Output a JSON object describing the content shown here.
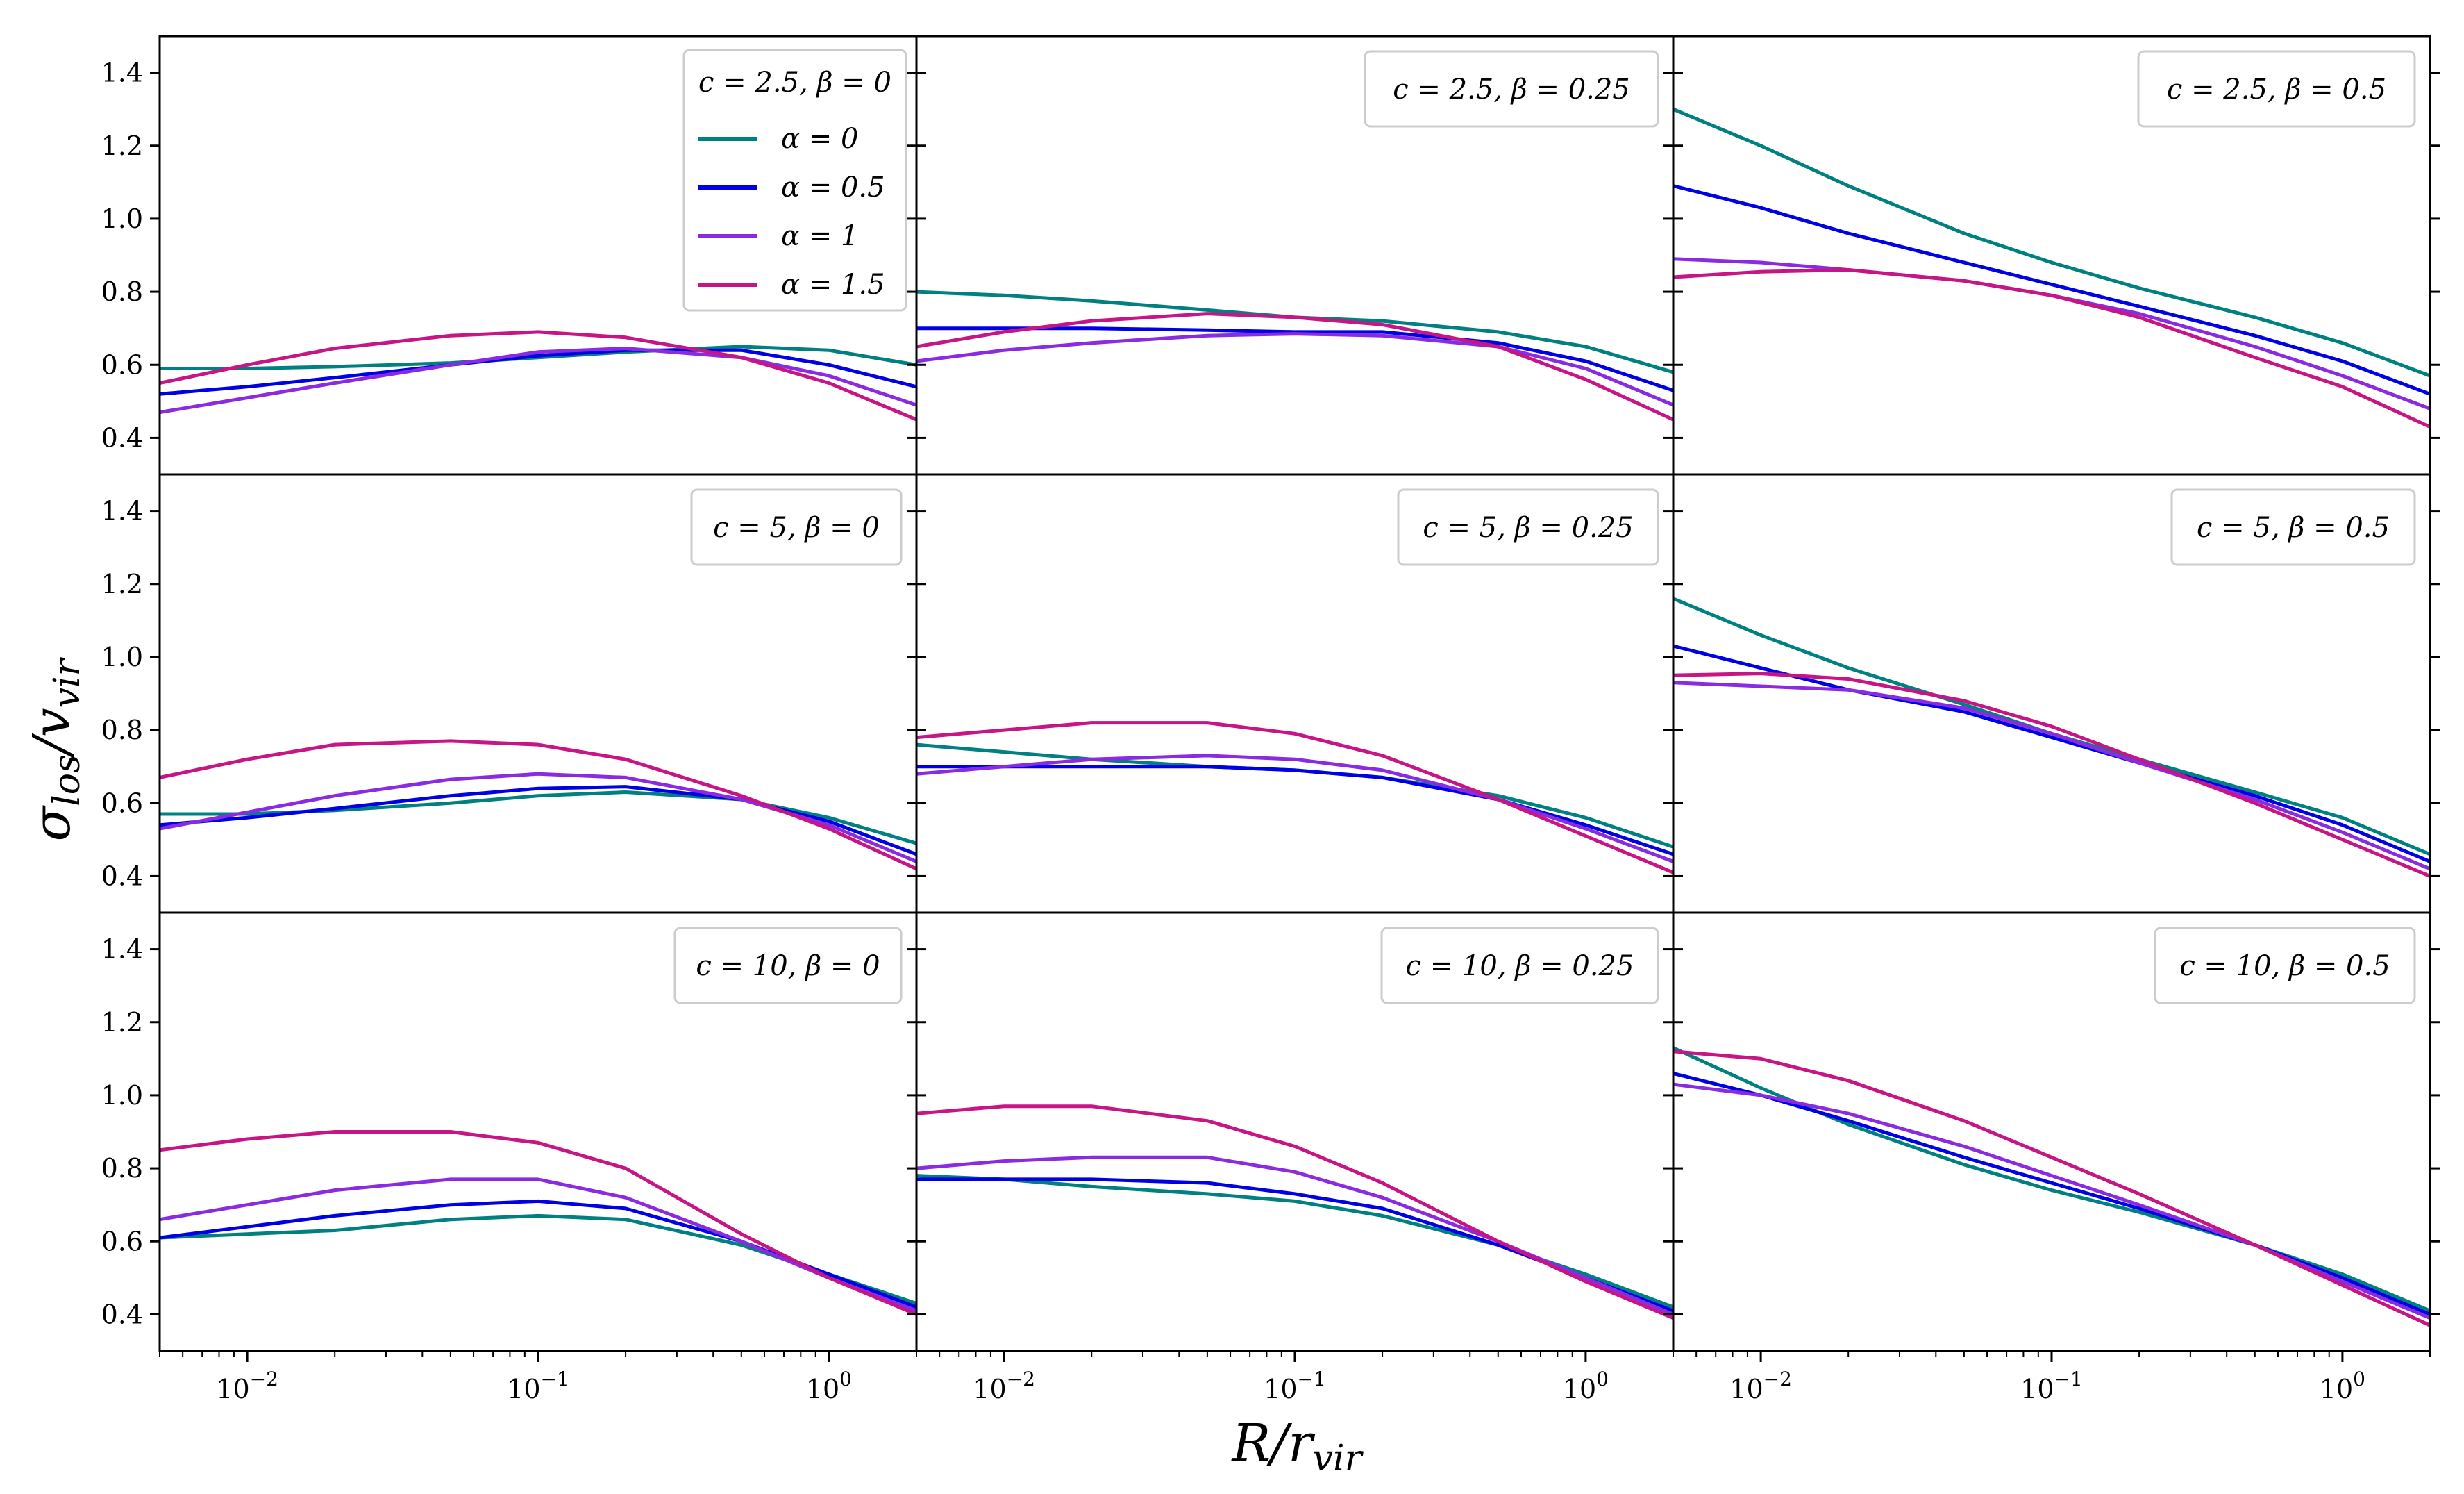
{
  "figure": {
    "xlabel": "R/r",
    "xlabel_sub": "vir",
    "ylabel": "σ",
    "ylabel_sub1": "los",
    "ylabel_mid": "/v",
    "ylabel_sub2": "vir"
  },
  "colors": {
    "alpha_0": "#008080",
    "alpha_0.5": "#0000e6",
    "alpha_1": "#8a2be2",
    "alpha_1.5": "#c71585"
  },
  "legend": {
    "title": "c = 2.5, β = 0",
    "entries": [
      "α = 0",
      "α = 0.5",
      "α = 1",
      "α = 1.5"
    ]
  },
  "chart_data": [
    {
      "type": "line",
      "label": "c = 2.5, β = 0",
      "xscale": "log",
      "xlim": [
        0.005,
        2.0
      ],
      "ylim": [
        0.3,
        1.5
      ],
      "grid": false,
      "legend": "top-right",
      "x": [
        0.005,
        0.01,
        0.02,
        0.05,
        0.1,
        0.2,
        0.5,
        1,
        2
      ],
      "series": [
        {
          "name": "α = 0",
          "values": [
            0.59,
            0.59,
            0.595,
            0.605,
            0.62,
            0.635,
            0.65,
            0.64,
            0.6
          ]
        },
        {
          "name": "α = 0.5",
          "values": [
            0.52,
            0.54,
            0.565,
            0.6,
            0.625,
            0.64,
            0.64,
            0.6,
            0.54
          ]
        },
        {
          "name": "α = 1",
          "values": [
            0.47,
            0.51,
            0.55,
            0.6,
            0.635,
            0.645,
            0.62,
            0.57,
            0.49
          ]
        },
        {
          "name": "α = 1.5",
          "values": [
            0.55,
            0.6,
            0.645,
            0.68,
            0.69,
            0.675,
            0.62,
            0.55,
            0.45
          ]
        }
      ]
    },
    {
      "type": "line",
      "label": "c = 2.5, β = 0.25",
      "xscale": "log",
      "xlim": [
        0.005,
        2.0
      ],
      "ylim": [
        0.3,
        1.5
      ],
      "grid": false,
      "legend": "top-right",
      "x": [
        0.005,
        0.01,
        0.02,
        0.05,
        0.1,
        0.2,
        0.5,
        1,
        2
      ],
      "series": [
        {
          "name": "α = 0",
          "values": [
            0.8,
            0.79,
            0.775,
            0.75,
            0.73,
            0.72,
            0.69,
            0.65,
            0.58
          ]
        },
        {
          "name": "α = 0.5",
          "values": [
            0.7,
            0.7,
            0.7,
            0.695,
            0.69,
            0.69,
            0.66,
            0.61,
            0.53
          ]
        },
        {
          "name": "α = 1",
          "values": [
            0.61,
            0.64,
            0.66,
            0.68,
            0.685,
            0.68,
            0.65,
            0.59,
            0.49
          ]
        },
        {
          "name": "α = 1.5",
          "values": [
            0.65,
            0.69,
            0.72,
            0.74,
            0.73,
            0.71,
            0.65,
            0.56,
            0.45
          ]
        }
      ]
    },
    {
      "type": "line",
      "label": "c = 2.5, β = 0.5",
      "xscale": "log",
      "xlim": [
        0.005,
        2.0
      ],
      "ylim": [
        0.3,
        1.5
      ],
      "grid": false,
      "legend": "top-right",
      "x": [
        0.005,
        0.01,
        0.02,
        0.05,
        0.1,
        0.2,
        0.5,
        1,
        2
      ],
      "series": [
        {
          "name": "α = 0",
          "values": [
            1.3,
            1.2,
            1.09,
            0.96,
            0.88,
            0.81,
            0.73,
            0.66,
            0.57
          ]
        },
        {
          "name": "α = 0.5",
          "values": [
            1.09,
            1.03,
            0.96,
            0.88,
            0.82,
            0.76,
            0.68,
            0.61,
            0.52
          ]
        },
        {
          "name": "α = 1",
          "values": [
            0.89,
            0.88,
            0.86,
            0.83,
            0.79,
            0.74,
            0.65,
            0.57,
            0.48
          ]
        },
        {
          "name": "α = 1.5",
          "values": [
            0.84,
            0.855,
            0.86,
            0.83,
            0.79,
            0.73,
            0.62,
            0.54,
            0.43
          ]
        }
      ]
    },
    {
      "type": "line",
      "label": "c = 5, β = 0",
      "xscale": "log",
      "xlim": [
        0.005,
        2.0
      ],
      "ylim": [
        0.3,
        1.5
      ],
      "grid": false,
      "legend": "top-right",
      "x": [
        0.005,
        0.01,
        0.02,
        0.05,
        0.1,
        0.2,
        0.5,
        1,
        2
      ],
      "series": [
        {
          "name": "α = 0",
          "values": [
            0.57,
            0.57,
            0.58,
            0.6,
            0.62,
            0.63,
            0.61,
            0.56,
            0.49
          ]
        },
        {
          "name": "α = 0.5",
          "values": [
            0.54,
            0.56,
            0.585,
            0.62,
            0.64,
            0.645,
            0.61,
            0.55,
            0.46
          ]
        },
        {
          "name": "α = 1",
          "values": [
            0.53,
            0.575,
            0.62,
            0.665,
            0.68,
            0.67,
            0.61,
            0.54,
            0.44
          ]
        },
        {
          "name": "α = 1.5",
          "values": [
            0.67,
            0.72,
            0.76,
            0.77,
            0.76,
            0.72,
            0.62,
            0.53,
            0.42
          ]
        }
      ]
    },
    {
      "type": "line",
      "label": "c = 5, β = 0.25",
      "xscale": "log",
      "xlim": [
        0.005,
        2.0
      ],
      "ylim": [
        0.3,
        1.5
      ],
      "grid": false,
      "legend": "top-right",
      "x": [
        0.005,
        0.01,
        0.02,
        0.05,
        0.1,
        0.2,
        0.5,
        1,
        2
      ],
      "series": [
        {
          "name": "α = 0",
          "values": [
            0.76,
            0.74,
            0.72,
            0.7,
            0.69,
            0.67,
            0.62,
            0.56,
            0.48
          ]
        },
        {
          "name": "α = 0.5",
          "values": [
            0.7,
            0.7,
            0.7,
            0.7,
            0.69,
            0.67,
            0.61,
            0.54,
            0.46
          ]
        },
        {
          "name": "α = 1",
          "values": [
            0.68,
            0.7,
            0.72,
            0.73,
            0.72,
            0.69,
            0.61,
            0.53,
            0.44
          ]
        },
        {
          "name": "α = 1.5",
          "values": [
            0.78,
            0.8,
            0.82,
            0.82,
            0.79,
            0.73,
            0.61,
            0.51,
            0.41
          ]
        }
      ]
    },
    {
      "type": "line",
      "label": "c = 5, β = 0.5",
      "xscale": "log",
      "xlim": [
        0.005,
        2.0
      ],
      "ylim": [
        0.3,
        1.5
      ],
      "grid": false,
      "legend": "top-right",
      "x": [
        0.005,
        0.01,
        0.02,
        0.05,
        0.1,
        0.2,
        0.5,
        1,
        2
      ],
      "series": [
        {
          "name": "α = 0",
          "values": [
            1.16,
            1.06,
            0.97,
            0.87,
            0.79,
            0.72,
            0.63,
            0.56,
            0.46
          ]
        },
        {
          "name": "α = 0.5",
          "values": [
            1.03,
            0.97,
            0.91,
            0.85,
            0.78,
            0.71,
            0.62,
            0.54,
            0.44
          ]
        },
        {
          "name": "α = 1",
          "values": [
            0.93,
            0.92,
            0.91,
            0.86,
            0.79,
            0.71,
            0.61,
            0.52,
            0.42
          ]
        },
        {
          "name": "α = 1.5",
          "values": [
            0.95,
            0.955,
            0.94,
            0.88,
            0.81,
            0.72,
            0.6,
            0.5,
            0.4
          ]
        }
      ]
    },
    {
      "type": "line",
      "label": "c = 10, β = 0",
      "xscale": "log",
      "xlim": [
        0.005,
        2.0
      ],
      "ylim": [
        0.3,
        1.5
      ],
      "grid": false,
      "legend": "top-right",
      "x": [
        0.005,
        0.01,
        0.02,
        0.05,
        0.1,
        0.2,
        0.5,
        1,
        2
      ],
      "series": [
        {
          "name": "α = 0",
          "values": [
            0.61,
            0.62,
            0.63,
            0.66,
            0.67,
            0.66,
            0.59,
            0.51,
            0.43
          ]
        },
        {
          "name": "α = 0.5",
          "values": [
            0.61,
            0.64,
            0.67,
            0.7,
            0.71,
            0.69,
            0.6,
            0.51,
            0.42
          ]
        },
        {
          "name": "α = 1",
          "values": [
            0.66,
            0.7,
            0.74,
            0.77,
            0.77,
            0.72,
            0.6,
            0.5,
            0.41
          ]
        },
        {
          "name": "α = 1.5",
          "values": [
            0.85,
            0.88,
            0.9,
            0.9,
            0.87,
            0.8,
            0.62,
            0.5,
            0.4
          ]
        }
      ]
    },
    {
      "type": "line",
      "label": "c = 10, β = 0.25",
      "xscale": "log",
      "xlim": [
        0.005,
        2.0
      ],
      "ylim": [
        0.3,
        1.5
      ],
      "grid": false,
      "legend": "top-right",
      "x": [
        0.005,
        0.01,
        0.02,
        0.05,
        0.1,
        0.2,
        0.5,
        1,
        2
      ],
      "series": [
        {
          "name": "α = 0",
          "values": [
            0.78,
            0.77,
            0.75,
            0.73,
            0.71,
            0.67,
            0.59,
            0.51,
            0.42
          ]
        },
        {
          "name": "α = 0.5",
          "values": [
            0.77,
            0.77,
            0.77,
            0.76,
            0.73,
            0.69,
            0.59,
            0.5,
            0.41
          ]
        },
        {
          "name": "α = 1",
          "values": [
            0.8,
            0.82,
            0.83,
            0.83,
            0.79,
            0.72,
            0.6,
            0.5,
            0.4
          ]
        },
        {
          "name": "α = 1.5",
          "values": [
            0.95,
            0.97,
            0.97,
            0.93,
            0.86,
            0.76,
            0.6,
            0.49,
            0.39
          ]
        }
      ]
    },
    {
      "type": "line",
      "label": "c = 10, β = 0.5",
      "xscale": "log",
      "xlim": [
        0.005,
        2.0
      ],
      "ylim": [
        0.3,
        1.5
      ],
      "grid": false,
      "legend": "top-right",
      "x": [
        0.005,
        0.01,
        0.02,
        0.05,
        0.1,
        0.2,
        0.5,
        1,
        2
      ],
      "series": [
        {
          "name": "α = 0",
          "values": [
            1.13,
            1.02,
            0.92,
            0.81,
            0.74,
            0.68,
            0.59,
            0.51,
            0.41
          ]
        },
        {
          "name": "α = 0.5",
          "values": [
            1.06,
            1.0,
            0.93,
            0.83,
            0.76,
            0.69,
            0.59,
            0.5,
            0.4
          ]
        },
        {
          "name": "α = 1",
          "values": [
            1.03,
            1.0,
            0.95,
            0.86,
            0.78,
            0.7,
            0.59,
            0.49,
            0.39
          ]
        },
        {
          "name": "α = 1.5",
          "values": [
            1.12,
            1.1,
            1.04,
            0.93,
            0.83,
            0.73,
            0.59,
            0.48,
            0.37
          ]
        }
      ]
    }
  ]
}
